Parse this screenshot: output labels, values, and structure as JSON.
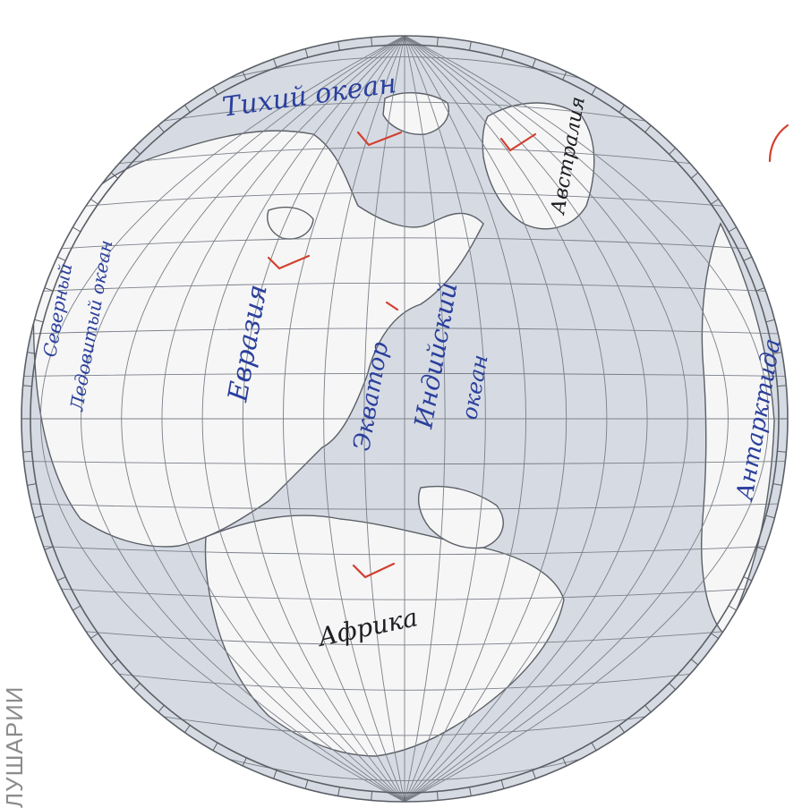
{
  "page": {
    "caption": "ЛУШАРИИ"
  },
  "colors": {
    "paper": "#ffffff",
    "ocean_tint": "#d6dbe3",
    "land": "#f6f6f6",
    "grid": "#7a7f88",
    "border": "#5b5f66",
    "blue_ink": "#2a3f9c",
    "black_ink": "#1d1d22",
    "red_mark": "#d2402f"
  },
  "labels": {
    "pacific_ocean": "Тихий океан",
    "australia": "Австралия",
    "eurasia": "Евразия",
    "arctic_ocean_line1": "Северный",
    "arctic_ocean_line2": "Ледовитый океан",
    "equator": "Экватор",
    "indian_ocean_line1": "Индийский",
    "indian_ocean_line2": "океан",
    "africa": "Африка",
    "antarctica": "Антарктида"
  }
}
